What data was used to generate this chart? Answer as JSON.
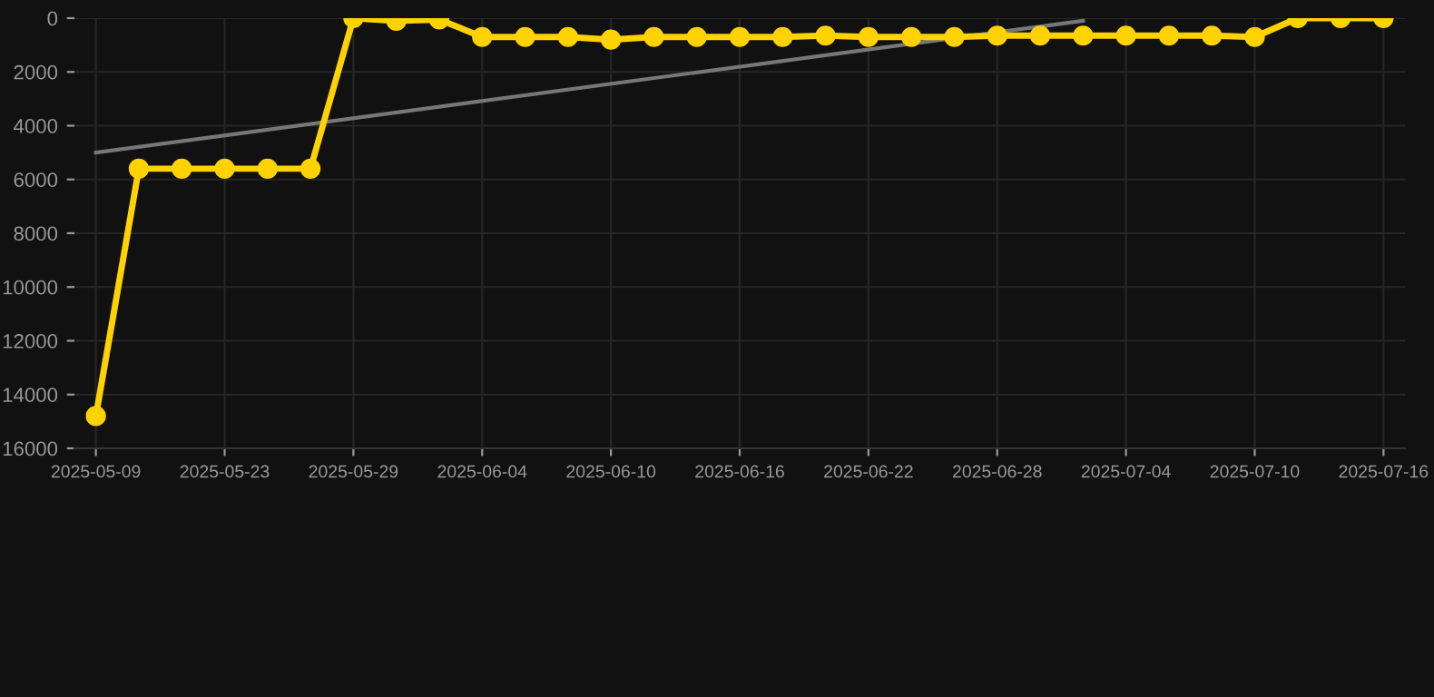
{
  "chart_data": {
    "type": "line",
    "categories": [
      "2025-05-09",
      null,
      null,
      "2025-05-23",
      null,
      null,
      "2025-05-29",
      null,
      null,
      "2025-06-04",
      null,
      null,
      "2025-06-10",
      null,
      null,
      "2025-06-16",
      null,
      null,
      "2025-06-22",
      null,
      null,
      "2025-06-28",
      null,
      null,
      "2025-07-04",
      null,
      null,
      "2025-07-10",
      null,
      null,
      "2025-07-16"
    ],
    "series": [
      {
        "color": "#ffd200",
        "marker": "circle",
        "values": [
          14800,
          5600,
          5600,
          5600,
          5600,
          5600,
          0,
          100,
          50,
          700,
          700,
          700,
          800,
          700,
          700,
          700,
          700,
          650,
          700,
          700,
          700,
          650,
          650,
          650,
          650,
          650,
          650,
          700,
          0,
          0,
          0
        ]
      },
      {
        "color": "#777777",
        "marker": "none",
        "values": [
          5000,
          null,
          null,
          null,
          null,
          null,
          null,
          null,
          null,
          null,
          null,
          null,
          null,
          null,
          null,
          null,
          null,
          null,
          null,
          null,
          null,
          null,
          null,
          100,
          null,
          null,
          null,
          null,
          null,
          null,
          null
        ]
      }
    ],
    "ylim": [
      16000,
      0
    ],
    "yticks": [
      0,
      2000,
      4000,
      6000,
      8000,
      10000,
      12000,
      14000,
      16000
    ],
    "grid": true,
    "line_style": "solid"
  }
}
